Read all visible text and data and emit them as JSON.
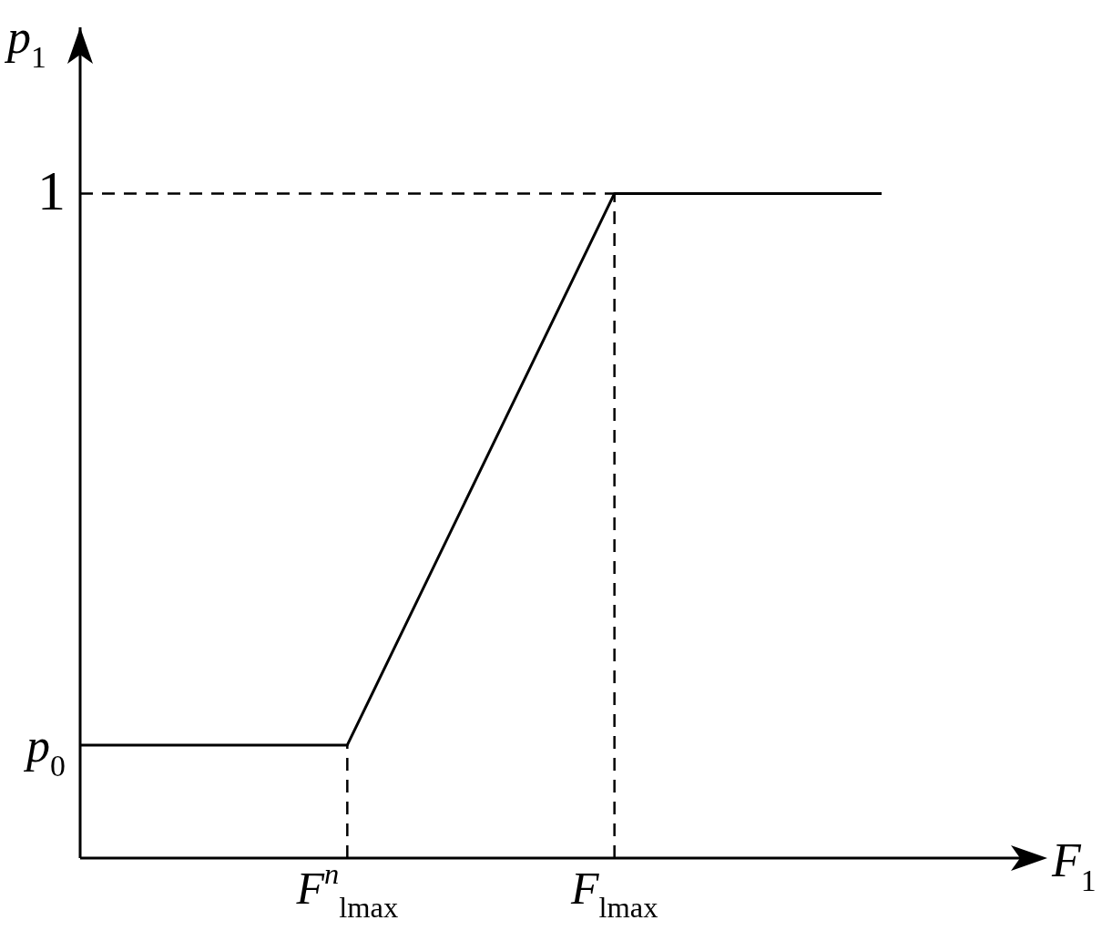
{
  "chart_data": {
    "type": "line",
    "xlabel": "F$_{1}$",
    "ylabel": "p$_{1}$",
    "categories": [
      null,
      "F$^{n}$$_{lmax}$",
      "F$_{lmax}$",
      null
    ],
    "series": [
      {
        "color": "#000000",
        "values": [
          0.17,
          0.17,
          1,
          1
        ]
      }
    ],
    "ylim": [
      0,
      1.25
    ],
    "yticks": [
      {
        "value": 0.17,
        "label": "p$_{0}$"
      },
      1
    ],
    "ref_lines": [
      {
        "axis": "x",
        "value": "F$^{n}$$_{lmax}$",
        "line_style": "dashed"
      },
      {
        "axis": "x",
        "value": "F$_{lmax}$",
        "line_style": "dashed"
      },
      {
        "axis": "y",
        "value": 1,
        "line_style": "dashed"
      }
    ],
    "grid": false,
    "marker": "none",
    "line_style": "solid"
  }
}
